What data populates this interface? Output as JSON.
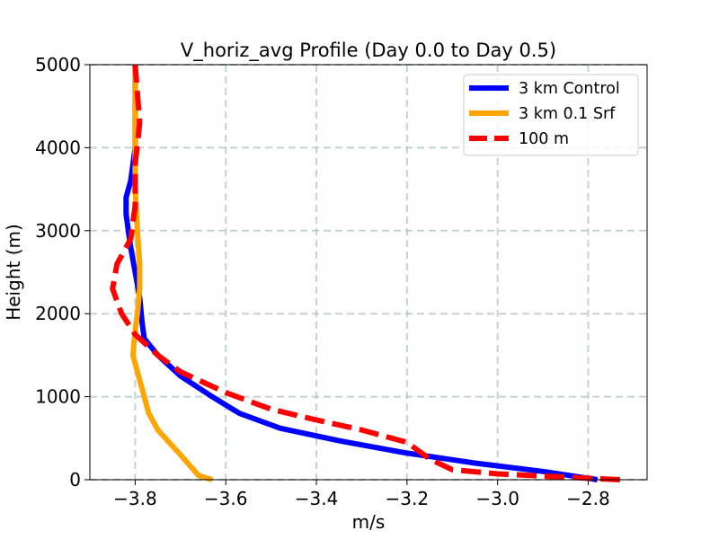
{
  "chart_data": {
    "type": "line",
    "title": "V_horiz_avg Profile (Day 0.0 to Day 0.5)",
    "xlabel": "m/s",
    "ylabel": "Height (m)",
    "xlim": [
      -3.9,
      -2.67
    ],
    "ylim": [
      0,
      5000
    ],
    "xticks": [
      -3.8,
      -3.6,
      -3.4,
      -3.2,
      -3.0,
      -2.8
    ],
    "xtick_labels": [
      "−3.8",
      "−3.6",
      "−3.4",
      "−3.2",
      "−3.0",
      "−2.8"
    ],
    "yticks": [
      0,
      1000,
      2000,
      3000,
      4000,
      5000
    ],
    "ytick_labels": [
      "0",
      "1000",
      "2000",
      "3000",
      "4000",
      "5000"
    ],
    "grid": true,
    "legend_position": "top-right",
    "series": [
      {
        "name": "3 km Control",
        "color": "#0000ff",
        "style": "solid",
        "points": [
          [
            -2.78,
            0
          ],
          [
            -2.9,
            100
          ],
          [
            -3.05,
            200
          ],
          [
            -3.2,
            320
          ],
          [
            -3.35,
            470
          ],
          [
            -3.48,
            620
          ],
          [
            -3.57,
            800
          ],
          [
            -3.63,
            1000
          ],
          [
            -3.7,
            1250
          ],
          [
            -3.75,
            1500
          ],
          [
            -3.78,
            1700
          ],
          [
            -3.785,
            1900
          ],
          [
            -3.79,
            2200
          ],
          [
            -3.8,
            2500
          ],
          [
            -3.81,
            2800
          ],
          [
            -3.815,
            3000
          ],
          [
            -3.82,
            3200
          ],
          [
            -3.82,
            3400
          ],
          [
            -3.81,
            3600
          ],
          [
            -3.8,
            4000
          ],
          [
            -3.8,
            4500
          ],
          [
            -3.8,
            5000
          ]
        ]
      },
      {
        "name": "3 km 0.1 Srf",
        "color": "#ffa500",
        "style": "solid",
        "points": [
          [
            -3.63,
            0
          ],
          [
            -3.66,
            50
          ],
          [
            -3.7,
            300
          ],
          [
            -3.75,
            600
          ],
          [
            -3.77,
            800
          ],
          [
            -3.78,
            1000
          ],
          [
            -3.79,
            1200
          ],
          [
            -3.805,
            1500
          ],
          [
            -3.8,
            1800
          ],
          [
            -3.795,
            2000
          ],
          [
            -3.79,
            2300
          ],
          [
            -3.79,
            2600
          ],
          [
            -3.795,
            3000
          ],
          [
            -3.8,
            3500
          ],
          [
            -3.8,
            4000
          ],
          [
            -3.8,
            4500
          ],
          [
            -3.8,
            5000
          ]
        ]
      },
      {
        "name": "100 m",
        "color": "#ff0000",
        "style": "dashed",
        "points": [
          [
            -2.73,
            0
          ],
          [
            -2.85,
            30
          ],
          [
            -3.0,
            70
          ],
          [
            -3.1,
            120
          ],
          [
            -3.15,
            250
          ],
          [
            -3.2,
            450
          ],
          [
            -3.3,
            600
          ],
          [
            -3.4,
            720
          ],
          [
            -3.5,
            850
          ],
          [
            -3.6,
            1050
          ],
          [
            -3.7,
            1300
          ],
          [
            -3.75,
            1500
          ],
          [
            -3.8,
            1750
          ],
          [
            -3.83,
            2000
          ],
          [
            -3.85,
            2300
          ],
          [
            -3.84,
            2600
          ],
          [
            -3.81,
            2900
          ],
          [
            -3.8,
            3300
          ],
          [
            -3.8,
            3800
          ],
          [
            -3.79,
            4300
          ],
          [
            -3.8,
            5000
          ]
        ]
      }
    ]
  }
}
